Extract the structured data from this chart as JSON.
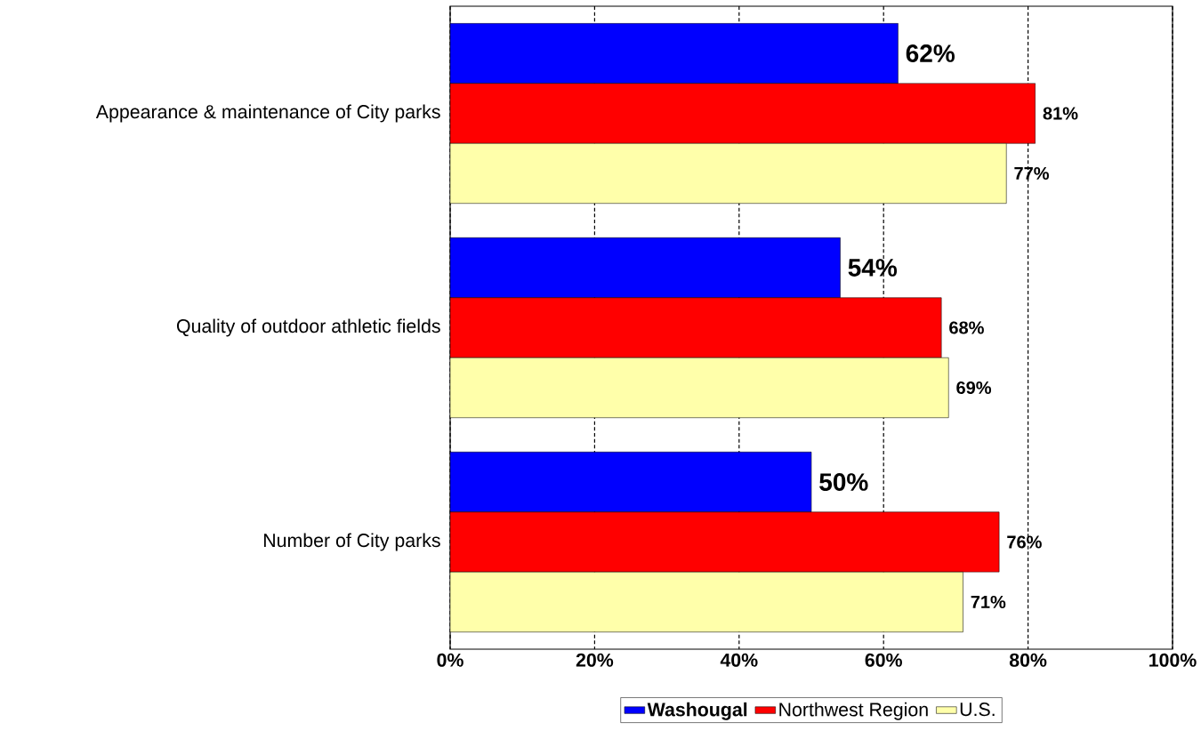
{
  "chart_data": {
    "type": "bar",
    "orientation": "horizontal",
    "categories": [
      "Appearance & maintenance of City parks",
      "Quality of outdoor athletic fields",
      "Number of City parks"
    ],
    "series": [
      {
        "name": "Washougal",
        "color": "#0000ff",
        "values": [
          62,
          54,
          50
        ],
        "value_labels": [
          "62%",
          "54%",
          "50%"
        ]
      },
      {
        "name": "Northwest Region",
        "color": "#ff0000",
        "values": [
          81,
          68,
          76
        ],
        "value_labels": [
          "81%",
          "68%",
          "76%"
        ]
      },
      {
        "name": "U.S.",
        "color": "#ffffaa",
        "values": [
          77,
          69,
          71
        ],
        "value_labels": [
          "77%",
          "69%",
          "71%"
        ]
      }
    ],
    "xlim": [
      0,
      100
    ],
    "xticks": [
      {
        "value": 0,
        "label": "0%"
      },
      {
        "value": 20,
        "label": "20%"
      },
      {
        "value": 40,
        "label": "40%"
      },
      {
        "value": 60,
        "label": "60%"
      },
      {
        "value": 80,
        "label": "80%"
      },
      {
        "value": 100,
        "label": "100%"
      }
    ],
    "grid": "x",
    "legend": "bottom"
  }
}
